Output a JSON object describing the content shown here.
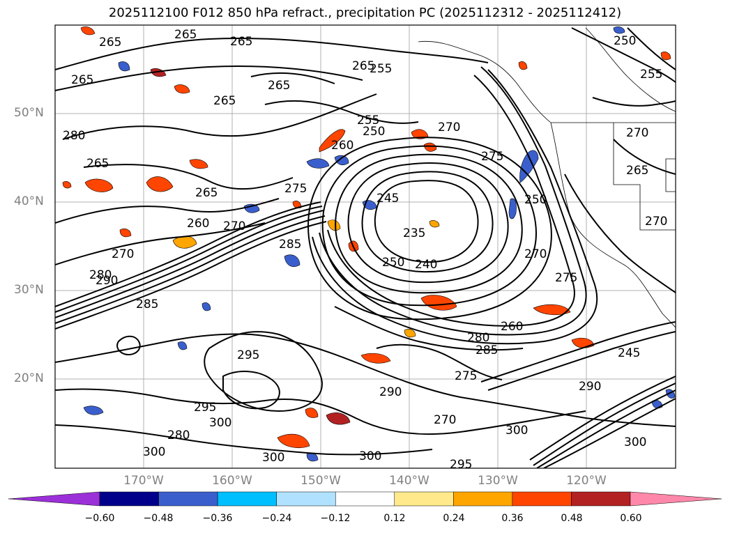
{
  "title": "2025112100 F012 850 hPa refract., precipitation PC (2025112312 - 2025112412)",
  "lat_labels": [
    "50°N",
    "40°N",
    "30°N",
    "20°N"
  ],
  "lon_labels": [
    "170°W",
    "160°W",
    "150°W",
    "140°W",
    "130°W",
    "120°W"
  ],
  "contour_labels": [
    "265",
    "265",
    "265",
    "265",
    "265",
    "265",
    "255",
    "250",
    "260",
    "270",
    "275",
    "265",
    "265",
    "270",
    "260",
    "275",
    "245",
    "235",
    "240",
    "250",
    "270",
    "250",
    "275",
    "285",
    "290",
    "280",
    "270",
    "285",
    "295",
    "290",
    "300",
    "295",
    "280",
    "300",
    "300",
    "300",
    "295",
    "285",
    "280",
    "275",
    "270",
    "260",
    "255",
    "265",
    "270",
    "270",
    "255",
    "250",
    "245",
    "300",
    "300",
    "290",
    "280",
    "265"
  ],
  "colorbar": {
    "ticks": [
      "−0.60",
      "−0.48",
      "−0.36",
      "−0.24",
      "−0.12",
      "0.12",
      "0.24",
      "0.36",
      "0.48",
      "0.60"
    ],
    "colors": [
      "#9b30d9",
      "#00008b",
      "#3a5fcd",
      "#00bfff",
      "#b0e2ff",
      "#ffffff",
      "#ffe98a",
      "#ffa500",
      "#ff4500",
      "#b22222",
      "#ff88aa"
    ]
  }
}
